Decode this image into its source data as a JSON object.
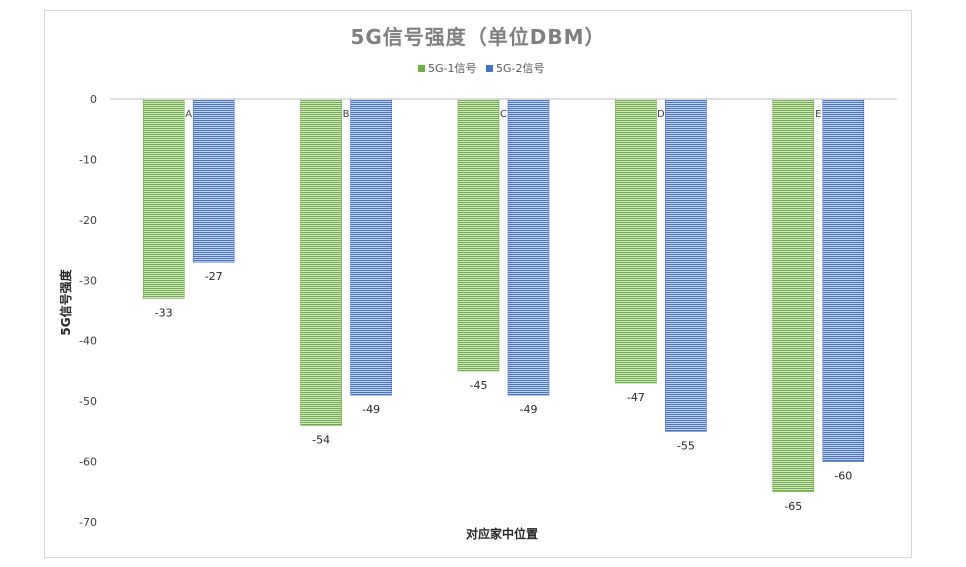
{
  "chart_data": {
    "type": "bar",
    "title": "5G信号强度（单位DBM）",
    "xlabel": "对应家中位置",
    "ylabel": "5G信号强度",
    "categories": [
      "A",
      "B",
      "C",
      "D",
      "E"
    ],
    "series": [
      {
        "name": "5G-1信号",
        "values": [
          -33,
          -54,
          -45,
          -47,
          -65
        ],
        "color": "#70ad47"
      },
      {
        "name": "5G-2信号",
        "values": [
          -27,
          -49,
          -49,
          -55,
          -60
        ],
        "color": "#4472c4"
      }
    ],
    "ylim": [
      -70,
      0
    ],
    "yticks": [
      0,
      -10,
      -20,
      -30,
      -40,
      -50,
      -60,
      -70
    ],
    "ytick_labels": [
      "0",
      "-10",
      "-20",
      "-30",
      "-40",
      "-50",
      "-60",
      "-70"
    ],
    "legend_position": "top",
    "bar_fill": "horizontal-stripes",
    "grid": false
  }
}
